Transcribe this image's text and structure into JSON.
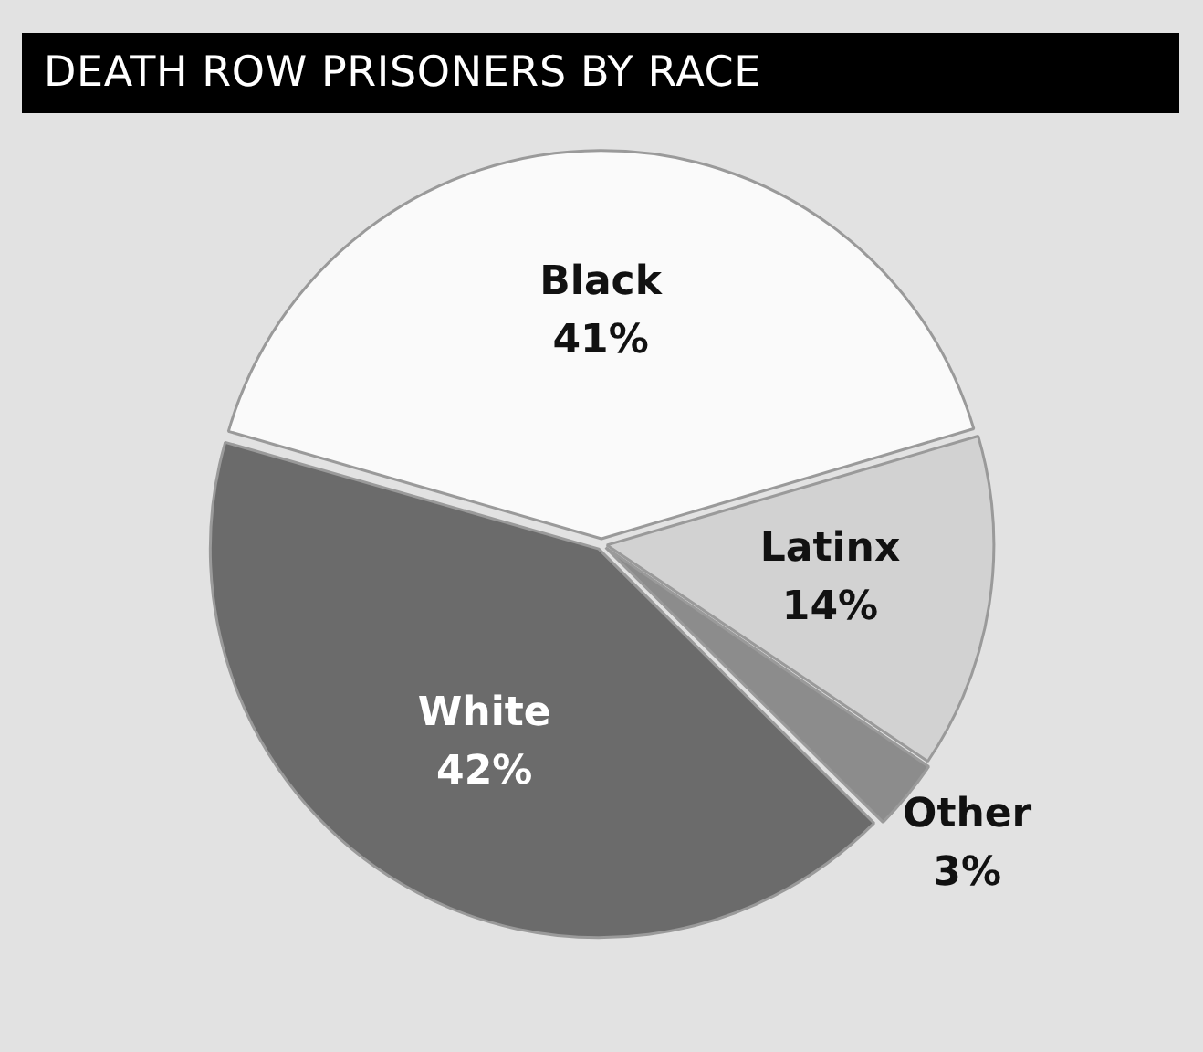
{
  "chart_data": {
    "type": "pie",
    "title": "DEATH ROW PRISONERS BY RACE",
    "categories": [
      "Black",
      "Latinx",
      "Other",
      "White"
    ],
    "values": [
      41,
      14,
      3,
      42
    ],
    "value_labels": [
      "41%",
      "14%",
      "3%",
      "42%"
    ],
    "colors": [
      "#fafafa",
      "#d2d2d2",
      "#8c8c8c",
      "#6b6b6b"
    ],
    "legend": false
  }
}
